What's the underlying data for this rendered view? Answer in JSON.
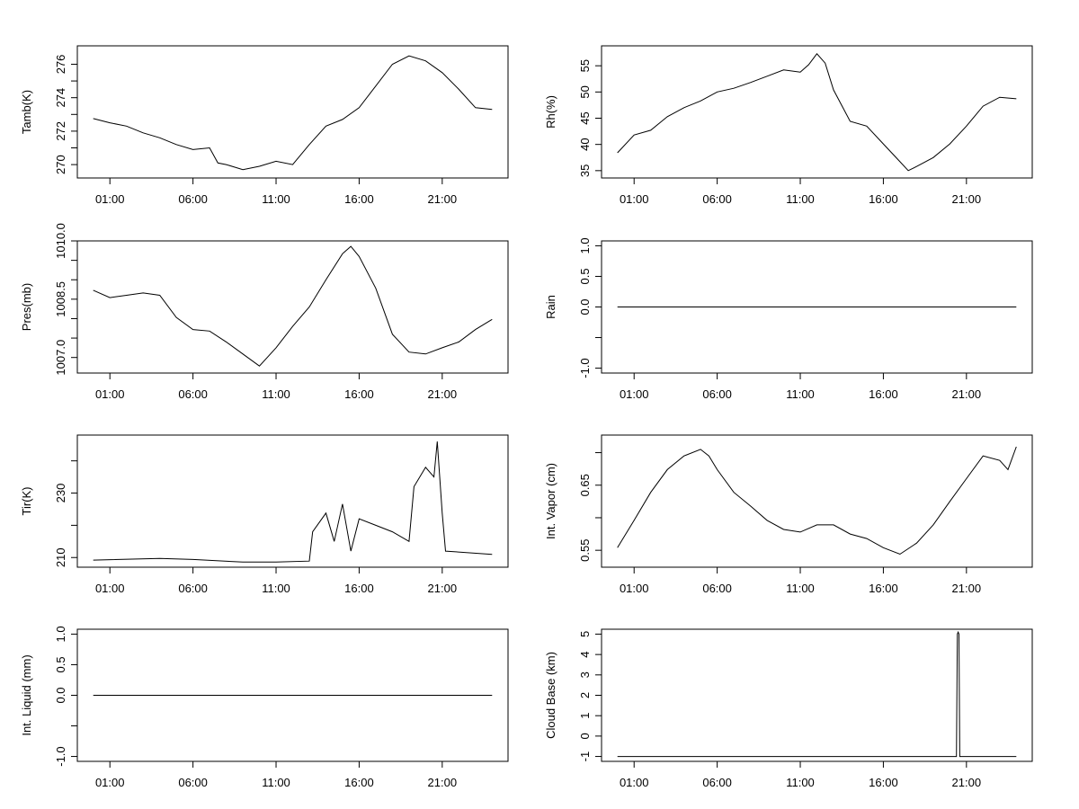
{
  "chart_data": [
    {
      "type": "line",
      "ylabel": "Tamb(K)",
      "ylim": [
        269.2,
        277.1
      ],
      "yticks": [
        270,
        271,
        272,
        273,
        274,
        275,
        276
      ],
      "ytick_labels": [
        "270",
        "272",
        "274",
        "276"
      ],
      "x_hours": [
        0,
        1,
        2,
        3,
        4,
        5,
        6,
        7,
        7.5,
        8,
        9,
        10,
        11,
        12,
        13,
        14,
        15,
        16,
        17,
        18,
        19,
        20,
        21,
        22,
        23,
        24
      ],
      "values": [
        272.75,
        272.5,
        272.3,
        271.9,
        271.6,
        271.2,
        270.9,
        271.0,
        270.1,
        270.0,
        269.7,
        269.9,
        270.2,
        270.0,
        271.2,
        272.3,
        272.7,
        273.4,
        274.7,
        276.0,
        276.5,
        276.2,
        275.5,
        274.5,
        273.4,
        273.3
      ]
    },
    {
      "type": "line",
      "ylabel": "Rh(%)",
      "ylim": [
        33.6,
        58.8
      ],
      "yticks": [
        35,
        40,
        45,
        50,
        55
      ],
      "ytick_labels": [
        "35",
        "40",
        "45",
        "50",
        "55"
      ],
      "x_hours": [
        0,
        1,
        2,
        3,
        4,
        5,
        6,
        7,
        8,
        9,
        10,
        11,
        11.5,
        12,
        12.5,
        13,
        14,
        15,
        16,
        17,
        17.5,
        18,
        19,
        20,
        21,
        22,
        23,
        24
      ],
      "values": [
        38.4,
        41.8,
        42.7,
        45.3,
        47,
        48.3,
        50,
        50.7,
        51.8,
        53,
        54.2,
        53.8,
        55.2,
        57.3,
        55.5,
        50.4,
        44.4,
        43.5,
        40.1,
        36.7,
        35,
        35.8,
        37.5,
        40.1,
        43.5,
        47.3,
        49,
        48.7
      ]
    },
    {
      "type": "line",
      "ylabel": "Pres(mb)",
      "ylim": [
        1006.6,
        1010.0
      ],
      "yticks": [
        1007.0,
        1007.5,
        1008.0,
        1008.5,
        1009.0,
        1009.5,
        1010.0
      ],
      "ytick_labels": [
        "1007.0",
        "1008.5",
        "1010.0"
      ],
      "x_hours": [
        0,
        1,
        2,
        3,
        4,
        5,
        6,
        7,
        8,
        9,
        10,
        11,
        12,
        13,
        14,
        15,
        15.5,
        16,
        17,
        18,
        19,
        20,
        21,
        22,
        23,
        24
      ],
      "values": [
        1008.73,
        1008.54,
        1008.6,
        1008.66,
        1008.6,
        1008.03,
        1007.72,
        1007.68,
        1007.4,
        1007.09,
        1006.78,
        1007.25,
        1007.8,
        1008.3,
        1009.0,
        1009.67,
        1009.86,
        1009.6,
        1008.78,
        1007.6,
        1007.14,
        1007.09,
        1007.25,
        1007.4,
        1007.72,
        1007.98
      ]
    },
    {
      "type": "line",
      "ylabel": "Rain",
      "ylim": [
        -1.08,
        1.08
      ],
      "yticks": [
        -1.0,
        -0.5,
        0.0,
        0.5,
        1.0
      ],
      "ytick_labels": [
        "-1.0",
        "0.0",
        "0.5",
        "1.0"
      ],
      "x_hours": [
        0,
        24
      ],
      "values": [
        0,
        0
      ]
    },
    {
      "type": "line",
      "ylabel": "Tir(K)",
      "ylim": [
        207,
        248
      ],
      "yticks": [
        210,
        220,
        230,
        240
      ],
      "ytick_labels": [
        "210",
        "230"
      ],
      "x_hours": [
        0,
        4,
        6,
        9,
        11,
        13,
        13.2,
        14,
        14.5,
        15,
        15.5,
        16,
        17,
        18,
        19,
        19.3,
        20,
        20.5,
        20.7,
        21,
        21.2,
        24
      ],
      "values": [
        209.2,
        209.7,
        209.4,
        208.6,
        208.6,
        208.9,
        218,
        223.8,
        215,
        226.6,
        212,
        222,
        220,
        218,
        215,
        232,
        238,
        235,
        246,
        223.8,
        212,
        211
      ]
    },
    {
      "type": "line",
      "ylabel": "Int. Vapor (cm)",
      "ylim": [
        0.524,
        0.727
      ],
      "yticks": [
        0.55,
        0.6,
        0.65,
        0.7
      ],
      "ytick_labels": [
        "0.55",
        "0.65"
      ],
      "x_hours": [
        0,
        1,
        2,
        3,
        4,
        5,
        5.5,
        6,
        7,
        8,
        9,
        10,
        11,
        12,
        13,
        14,
        15,
        16,
        17,
        18,
        19,
        20,
        21,
        22,
        23,
        23.5,
        24
      ],
      "values": [
        0.554,
        0.596,
        0.639,
        0.674,
        0.695,
        0.705,
        0.695,
        0.674,
        0.639,
        0.618,
        0.596,
        0.582,
        0.578,
        0.589,
        0.589,
        0.575,
        0.568,
        0.554,
        0.544,
        0.561,
        0.589,
        0.625,
        0.66,
        0.695,
        0.688,
        0.674,
        0.709
      ]
    },
    {
      "type": "line",
      "ylabel": "Int. Liquid (mm)",
      "ylim": [
        -1.08,
        1.08
      ],
      "yticks": [
        -1.0,
        -0.5,
        0.0,
        0.5,
        1.0
      ],
      "ytick_labels": [
        "-1.0",
        "0.0",
        "0.5",
        "1.0"
      ],
      "x_hours": [
        0,
        24
      ],
      "values": [
        0,
        0
      ]
    },
    {
      "type": "line",
      "ylabel": "Cloud Base (km)",
      "ylim": [
        -1.24,
        5.24
      ],
      "yticks": [
        -1,
        0,
        1,
        2,
        3,
        4,
        5
      ],
      "ytick_labels": [
        "-1",
        "0",
        "1",
        "2",
        "3",
        "4",
        "5"
      ],
      "x_hours": [
        0,
        20.4,
        20.45,
        20.5,
        20.55,
        20.6,
        24
      ],
      "values": [
        -1,
        -1,
        5.0,
        5.1,
        5.0,
        -1,
        -1
      ]
    }
  ],
  "x_axis": {
    "xlim_hours": [
      0,
      24
    ],
    "ticks_hours": [
      1,
      6,
      11,
      16,
      21
    ],
    "tick_labels": [
      "01:00",
      "06:00",
      "11:00",
      "16:00",
      "21:00"
    ]
  }
}
